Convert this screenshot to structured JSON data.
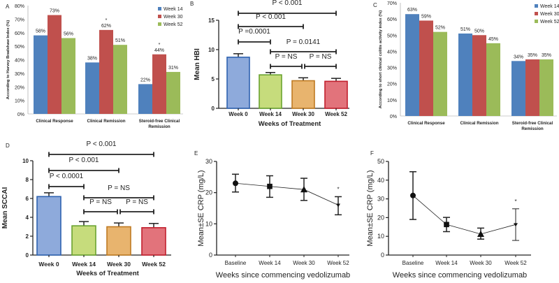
{
  "chart_data": [
    {
      "panel": "A",
      "type": "bar",
      "categories": [
        [
          "Clinical Response"
        ],
        [
          "Clinical Remission"
        ],
        [
          "Steroid-free Clinical",
          "Remission"
        ]
      ],
      "series": [
        {
          "name": "Week 14",
          "color": "#4f81bd",
          "values": [
            58,
            38,
            22
          ],
          "labels": [
            "58%",
            "38%",
            "22%"
          ],
          "stars": [
            "",
            "",
            ""
          ]
        },
        {
          "name": "Week 30",
          "color": "#c0504d",
          "values": [
            73,
            62,
            44
          ],
          "labels": [
            "73%",
            "62%",
            "44%"
          ],
          "stars": [
            "",
            "*",
            "*"
          ]
        },
        {
          "name": "Week 52",
          "color": "#9bbb59",
          "values": [
            56,
            51,
            31
          ],
          "labels": [
            "56%",
            "51%",
            "31%"
          ],
          "stars": [
            "",
            "",
            ""
          ]
        }
      ],
      "ylabel": "According to Harvey Bradshaw Index (%)",
      "ylim": [
        0,
        80
      ],
      "yticks": [
        "0%",
        "10%",
        "20%",
        "30%",
        "40%",
        "50%",
        "60%",
        "70%",
        "80%"
      ],
      "legend": "top-right"
    },
    {
      "panel": "B",
      "type": "bar",
      "categories": [
        "Week 0",
        "Week 14",
        "Week 30",
        "Week 52"
      ],
      "values": [
        8.7,
        5.7,
        4.7,
        4.6
      ],
      "errors": [
        0.6,
        0.4,
        0.5,
        0.5
      ],
      "colors": [
        [
          "#8eaadb",
          "#2e62b0"
        ],
        [
          "#c6dc7c",
          "#6aa330"
        ],
        [
          "#e8b46e",
          "#bf7a22"
        ],
        [
          "#e2737b",
          "#c2202e"
        ]
      ],
      "xlabel": "Weeks of Treatment",
      "ylabel": "Mean HBI",
      "ylim": [
        0,
        15
      ],
      "yticks": [
        "0",
        "5",
        "10",
        "15"
      ],
      "comparisons": [
        {
          "from": 0,
          "to": 3,
          "label": "P < 0.001"
        },
        {
          "from": 0,
          "to": 2,
          "label": "P < 0.001"
        },
        {
          "from": 0,
          "to": 1,
          "label": "P =0.0001"
        },
        {
          "from": 1,
          "to": 3,
          "label": "P = 0.0141"
        },
        {
          "from": 1,
          "to": 2,
          "label": "P = NS"
        },
        {
          "from": 2,
          "to": 3,
          "label": "P = NS"
        }
      ]
    },
    {
      "panel": "C",
      "type": "bar",
      "categories": [
        [
          "Clinical Response"
        ],
        [
          "Clinical Remission"
        ],
        [
          "Steroid-free Clinical",
          "Remission"
        ]
      ],
      "series": [
        {
          "name": "Week 14",
          "color": "#4f81bd",
          "values": [
            63,
            51,
            34
          ],
          "labels": [
            "63%",
            "51%",
            "34%"
          ],
          "stars": [
            "",
            "",
            ""
          ]
        },
        {
          "name": "Week 30",
          "color": "#c0504d",
          "values": [
            59,
            50,
            35
          ],
          "labels": [
            "59%",
            "50%",
            "35%"
          ],
          "stars": [
            "",
            "",
            ""
          ]
        },
        {
          "name": "Week 52",
          "color": "#9bbb59",
          "values": [
            52,
            45,
            35
          ],
          "labels": [
            "52%",
            "45%",
            "35%"
          ],
          "stars": [
            "",
            "",
            ""
          ]
        }
      ],
      "ylabel": "According to short clinical colitis activity index (%)",
      "ylim": [
        0,
        70
      ],
      "yticks": [
        "0%",
        "10%",
        "20%",
        "30%",
        "40%",
        "50%",
        "60%",
        "70%"
      ],
      "legend": "top-right"
    },
    {
      "panel": "D",
      "type": "bar",
      "categories": [
        "Week 0",
        "Week 14",
        "Week 30",
        "Week 52"
      ],
      "values": [
        6.2,
        3.1,
        3.0,
        2.9
      ],
      "errors": [
        0.4,
        0.45,
        0.4,
        0.45
      ],
      "colors": [
        [
          "#8eaadb",
          "#2e62b0"
        ],
        [
          "#c6dc7c",
          "#6aa330"
        ],
        [
          "#e8b46e",
          "#bf7a22"
        ],
        [
          "#e2737b",
          "#c2202e"
        ]
      ],
      "xlabel": "Weeks of Treatment",
      "ylabel": "Mean SCCAI",
      "ylim": [
        0,
        10
      ],
      "yticks": [
        "0",
        "2",
        "4",
        "6",
        "8",
        "10"
      ],
      "comparisons": [
        {
          "from": 0,
          "to": 3,
          "label": "P < 0.001"
        },
        {
          "from": 0,
          "to": 2,
          "label": "P < 0.001"
        },
        {
          "from": 0,
          "to": 1,
          "label": "P < 0.0001"
        },
        {
          "from": 1,
          "to": 3,
          "label": "P = NS"
        },
        {
          "from": 1,
          "to": 2,
          "label": "P = NS"
        },
        {
          "from": 2,
          "to": 3,
          "label": "P = NS"
        }
      ]
    },
    {
      "panel": "E",
      "type": "line",
      "categories": [
        "Baseline",
        "Week 14",
        "Week 30",
        "Week 52"
      ],
      "values": [
        23,
        22,
        21,
        16
      ],
      "lower": [
        20.2,
        18.5,
        17.5,
        12.9
      ],
      "upper": [
        25.9,
        25.4,
        24.6,
        18.7
      ],
      "markers": [
        "circle",
        "square",
        "triangle",
        "triangle-down"
      ],
      "stars": [
        "",
        "",
        "",
        "*"
      ],
      "xlabel": "Weeks since commencing vedolizumab",
      "ylabel": "Mean±SE    CRP (mg/L)",
      "ylim": [
        0,
        30
      ],
      "yticks": [
        "0",
        "10",
        "20",
        "30"
      ]
    },
    {
      "panel": "F",
      "type": "line",
      "categories": [
        "Baseline",
        "Week 14",
        "Week 30",
        "Week 52"
      ],
      "values": [
        31.8,
        16.3,
        11.2,
        16.3
      ],
      "lower": [
        19,
        12.5,
        8.5,
        7.8
      ],
      "upper": [
        44.5,
        20.1,
        14.4,
        24.7
      ],
      "markers": [
        "circle",
        "square",
        "triangle",
        "triangle-down"
      ],
      "stars": [
        "",
        "",
        "",
        "*"
      ],
      "xlabel": "Weeks since commencing vedolizumab",
      "ylabel": "Mean±SE CRP (mg/L)",
      "ylim": [
        0,
        50
      ],
      "yticks": [
        "0",
        "10",
        "20",
        "30",
        "40",
        "50"
      ]
    }
  ]
}
